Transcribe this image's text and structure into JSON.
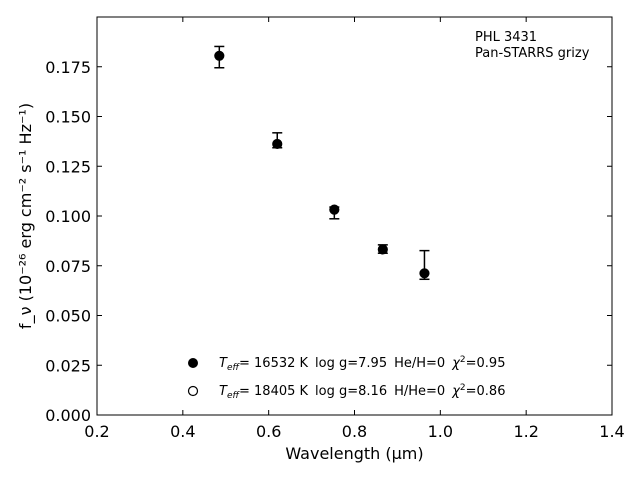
{
  "chart_data": {
    "type": "scatter",
    "xlabel": "Wavelength (μm)",
    "ylabel": "f_ν (10⁻²⁶ erg cm⁻² s⁻¹ Hz⁻¹)",
    "xlim": [
      0.2,
      1.4
    ],
    "ylim": [
      0.0,
      0.2
    ],
    "xticks": [
      0.2,
      0.4,
      0.6,
      0.8,
      1.0,
      1.2,
      1.4
    ],
    "xtick_labels": [
      "0.2",
      "0.4",
      "0.6",
      "0.8",
      "1.0",
      "1.2",
      "1.4"
    ],
    "yticks": [
      0.0,
      0.025,
      0.05,
      0.075,
      0.1,
      0.125,
      0.15,
      0.175
    ],
    "ytick_labels": [
      "0.000",
      "0.025",
      "0.050",
      "0.075",
      "0.100",
      "0.125",
      "0.150",
      "0.175"
    ],
    "grid": false,
    "annotation_lines": [
      "PHL 3431",
      "Pan-STARRS grizy"
    ],
    "series": [
      {
        "marker": "filled-circle",
        "points": [
          {
            "x": 0.485,
            "y": 0.1805
          },
          {
            "x": 0.62,
            "y": 0.1362
          },
          {
            "x": 0.753,
            "y": 0.1032
          },
          {
            "x": 0.866,
            "y": 0.0832
          },
          {
            "x": 0.963,
            "y": 0.0712
          }
        ]
      },
      {
        "marker": "open-circle",
        "points": []
      }
    ],
    "observations": [
      {
        "x": 0.485,
        "y_low": 0.1745,
        "y_high": 0.1852
      },
      {
        "x": 0.62,
        "y_low": 0.1343,
        "y_high": 0.1418
      },
      {
        "x": 0.753,
        "y_low": 0.0986,
        "y_high": 0.1045
      },
      {
        "x": 0.866,
        "y_low": 0.0813,
        "y_high": 0.0855
      },
      {
        "x": 0.963,
        "y_low": 0.0682,
        "y_high": 0.0826
      }
    ],
    "legend_position": "lower-center",
    "legend": [
      {
        "marker": "filled-circle",
        "teff_label": "T",
        "teff_sub": "eff",
        "teff_value": "= 16532 K",
        "logg": "log g=7.95",
        "abund": "He/H=0",
        "chi_label": "χ",
        "chi_sup": "2",
        "chi_value": "=0.95"
      },
      {
        "marker": "open-circle",
        "teff_label": "T",
        "teff_sub": "eff",
        "teff_value": "= 18405 K",
        "logg": "log g=8.16",
        "abund": "H/He=0",
        "chi_label": "χ",
        "chi_sup": "2",
        "chi_value": "=0.86"
      }
    ]
  }
}
